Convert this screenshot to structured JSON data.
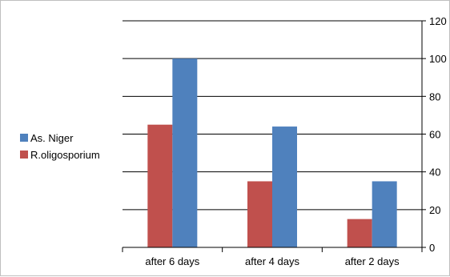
{
  "chart_data": {
    "type": "bar",
    "categories": [
      "after 6 days",
      "after 4 days",
      "after 2 days"
    ],
    "series": [
      {
        "name": "R.oligosporium",
        "values": [
          65,
          35,
          15
        ],
        "color": "#c0504d"
      },
      {
        "name": "As. Niger",
        "values": [
          100,
          64,
          35
        ],
        "color": "#4f81bd"
      }
    ],
    "legend_order": [
      "As. Niger",
      "R.oligosporium"
    ],
    "ylim": [
      0,
      120
    ],
    "yticks": [
      0,
      20,
      40,
      60,
      80,
      100,
      120
    ],
    "y_axis_side": "right",
    "legend_position": "left",
    "grid": true,
    "gridline_color": "#000000",
    "title": "",
    "xlabel": "",
    "ylabel": ""
  }
}
